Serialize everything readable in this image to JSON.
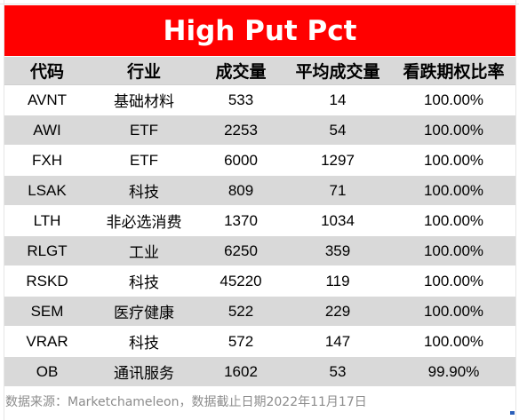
{
  "chart_data": {
    "type": "table",
    "title": "High Put Pct",
    "columns": [
      "代码",
      "行业",
      "成交量",
      "平均成交量",
      "看跌期权比率"
    ],
    "rows": [
      [
        "AVNT",
        "基础材料",
        "533",
        "14",
        "100.00%"
      ],
      [
        "AWI",
        "ETF",
        "2253",
        "54",
        "100.00%"
      ],
      [
        "FXH",
        "ETF",
        "6000",
        "1297",
        "100.00%"
      ],
      [
        "LSAK",
        "科技",
        "809",
        "71",
        "100.00%"
      ],
      [
        "LTH",
        "非必选消费",
        "1370",
        "1034",
        "100.00%"
      ],
      [
        "RLGT",
        "工业",
        "6250",
        "359",
        "100.00%"
      ],
      [
        "RSKD",
        "科技",
        "45220",
        "119",
        "100.00%"
      ],
      [
        "SEM",
        "医疗健康",
        "522",
        "229",
        "100.00%"
      ],
      [
        "VRAR",
        "科技",
        "572",
        "147",
        "100.00%"
      ],
      [
        "OB",
        "通讯服务",
        "1602",
        "53",
        "99.90%"
      ]
    ],
    "footer": "数据来源：Marketchameleon，数据截止日期2022年11月17日"
  },
  "colors": {
    "title_bg": "#ff0000",
    "title_text": "#ffffff",
    "band": "#d9d9d9",
    "footer_text": "#8c8c8c"
  }
}
